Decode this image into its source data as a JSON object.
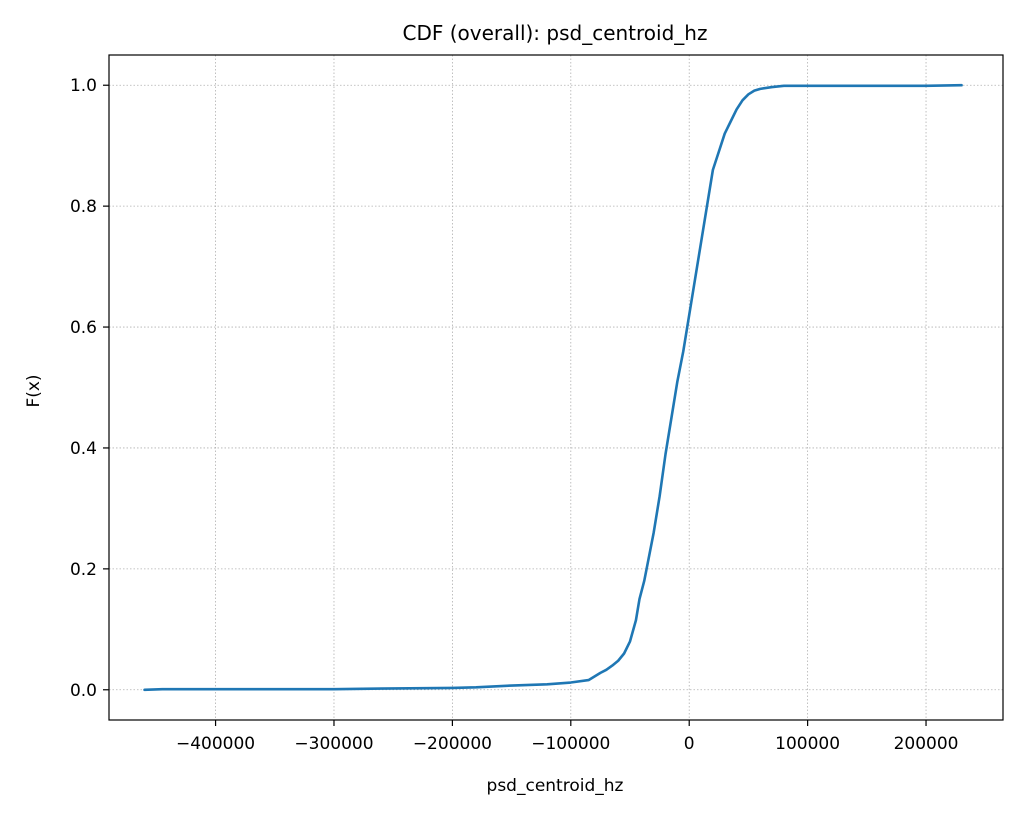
{
  "chart_data": {
    "type": "line",
    "title": "CDF (overall): psd_centroid_hz",
    "xlabel": "psd_centroid_hz",
    "ylabel": "F(x)",
    "xlim": [
      -490000,
      265000
    ],
    "ylim": [
      -0.05,
      1.05
    ],
    "x_ticks": [
      -400000,
      -300000,
      -200000,
      -100000,
      0,
      100000,
      200000
    ],
    "x_tick_labels": [
      "−400000",
      "−300000",
      "−200000",
      "−100000",
      "0",
      "100000",
      "200000"
    ],
    "y_ticks": [
      0.0,
      0.2,
      0.4,
      0.6,
      0.8,
      1.0
    ],
    "y_tick_labels": [
      "0.0",
      "0.2",
      "0.4",
      "0.6",
      "0.8",
      "1.0"
    ],
    "grid": true,
    "grid_style": "dotted",
    "series": [
      {
        "color": "#1f77b4",
        "x": [
          -460000,
          -445000,
          -400000,
          -300000,
          -260000,
          -200000,
          -180000,
          -150000,
          -120000,
          -100000,
          -85000,
          -80000,
          -75000,
          -70000,
          -65000,
          -60000,
          -55000,
          -50000,
          -45000,
          -42000,
          -38000,
          -35000,
          -30000,
          -25000,
          -20000,
          -15000,
          -10000,
          -5000,
          0,
          5000,
          10000,
          15000,
          20000,
          25000,
          30000,
          35000,
          40000,
          45000,
          50000,
          55000,
          60000,
          70000,
          80000,
          100000,
          150000,
          200000,
          230000
        ],
        "y": [
          0.0,
          0.001,
          0.001,
          0.001,
          0.002,
          0.003,
          0.004,
          0.007,
          0.009,
          0.012,
          0.016,
          0.022,
          0.028,
          0.033,
          0.04,
          0.048,
          0.06,
          0.08,
          0.115,
          0.15,
          0.18,
          0.21,
          0.26,
          0.32,
          0.39,
          0.45,
          0.51,
          0.56,
          0.62,
          0.68,
          0.74,
          0.8,
          0.86,
          0.89,
          0.92,
          0.94,
          0.96,
          0.975,
          0.985,
          0.991,
          0.994,
          0.997,
          0.999,
          0.999,
          0.999,
          0.999,
          1.0
        ]
      }
    ]
  }
}
